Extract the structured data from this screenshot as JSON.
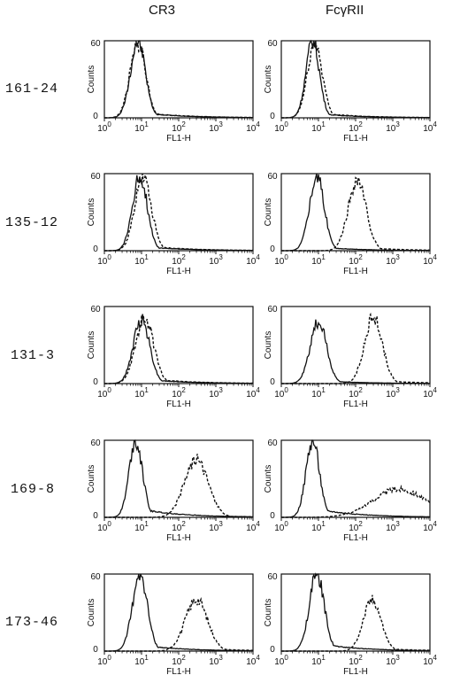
{
  "columns": [
    "CR3",
    "FcγRII"
  ],
  "rows": [
    "161-24",
    "135-12",
    "131-3",
    "169-8",
    "173-46"
  ],
  "chart_data": {
    "type": "line",
    "description_scale": "log10 x axis, linear y axis",
    "xlabel": "FL1-H",
    "ylabel": "Counts",
    "xlim": [
      1,
      10000
    ],
    "ylim": [
      0,
      60
    ],
    "x_ticks": [
      "10^0",
      "10^1",
      "10^2",
      "10^3",
      "10^4"
    ],
    "y_ticks": [
      "0",
      "60"
    ],
    "panels": [
      {
        "row": "161-24",
        "column": "CR3",
        "series": [
          {
            "style": "solid",
            "peak_x": 8,
            "peak_count": 60,
            "width": 0.2,
            "tail": 0.07
          },
          {
            "style": "dashed",
            "peak_x": 8,
            "peak_count": 58,
            "width": 0.21,
            "tail": 0.08
          }
        ]
      },
      {
        "row": "161-24",
        "column": "FcγRII",
        "series": [
          {
            "style": "solid",
            "peak_x": 7,
            "peak_count": 60,
            "width": 0.18,
            "tail": 0.06
          },
          {
            "style": "dashed",
            "peak_x": 8,
            "peak_count": 58,
            "width": 0.2,
            "tail": 0.07
          }
        ]
      },
      {
        "row": "135-12",
        "column": "CR3",
        "series": [
          {
            "style": "solid",
            "peak_x": 9,
            "peak_count": 58,
            "width": 0.2,
            "tail": 0.06
          },
          {
            "style": "dashed",
            "peak_x": 11,
            "peak_count": 58,
            "width": 0.22,
            "tail": 0.07
          }
        ]
      },
      {
        "row": "135-12",
        "column": "FcγRII",
        "series": [
          {
            "style": "solid",
            "peak_x": 9,
            "peak_count": 58,
            "width": 0.2,
            "tail": 0.05
          },
          {
            "style": "dashed",
            "peak_x": 110,
            "peak_count": 55,
            "width": 0.24,
            "tail": 0.05
          }
        ]
      },
      {
        "row": "131-3",
        "column": "CR3",
        "series": [
          {
            "style": "solid",
            "peak_x": 10,
            "peak_count": 50,
            "width": 0.22,
            "tail": 0.07
          },
          {
            "style": "dashed",
            "peak_x": 12,
            "peak_count": 52,
            "width": 0.24,
            "tail": 0.08
          }
        ]
      },
      {
        "row": "131-3",
        "column": "FcγRII",
        "series": [
          {
            "style": "solid",
            "peak_x": 10,
            "peak_count": 48,
            "width": 0.22,
            "tail": 0.05
          },
          {
            "style": "dashed",
            "peak_x": 300,
            "peak_count": 52,
            "width": 0.24,
            "tail": 0.05
          }
        ]
      },
      {
        "row": "169-8",
        "column": "CR3",
        "series": [
          {
            "style": "solid",
            "peak_x": 7,
            "peak_count": 60,
            "width": 0.18,
            "tail": 0.12
          },
          {
            "style": "dashed",
            "peak_x": 300,
            "peak_count": 45,
            "width": 0.32,
            "tail": 0.04
          }
        ]
      },
      {
        "row": "169-8",
        "column": "FcγRII",
        "series": [
          {
            "style": "solid",
            "peak_x": 7,
            "peak_count": 60,
            "width": 0.18,
            "tail": 0.12
          },
          {
            "style": "dashed",
            "peak_x": 1500,
            "peak_count": 22,
            "width": 0.7,
            "tail": 0.3
          }
        ]
      },
      {
        "row": "173-46",
        "column": "CR3",
        "series": [
          {
            "style": "solid",
            "peak_x": 9,
            "peak_count": 60,
            "width": 0.2,
            "tail": 0.08
          },
          {
            "style": "dashed",
            "peak_x": 300,
            "peak_count": 40,
            "width": 0.3,
            "tail": 0.06
          }
        ]
      },
      {
        "row": "173-46",
        "column": "FcγRII",
        "series": [
          {
            "style": "solid",
            "peak_x": 9,
            "peak_count": 60,
            "width": 0.2,
            "tail": 0.1
          },
          {
            "style": "dashed",
            "peak_x": 280,
            "peak_count": 40,
            "width": 0.24,
            "tail": 0.06
          }
        ]
      }
    ]
  }
}
